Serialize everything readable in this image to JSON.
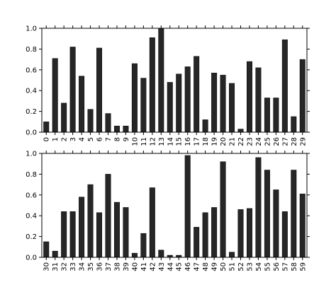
{
  "chart_data": [
    {
      "type": "bar",
      "title": "",
      "xlabel": "",
      "ylabel": "",
      "ylim": [
        0,
        1.0
      ],
      "y_ticks": [
        "0.0",
        "0.2",
        "0.4",
        "0.6",
        "0.8",
        "1.0"
      ],
      "grid": false,
      "bar_color": "#262626",
      "categories": [
        "0",
        "1",
        "2",
        "3",
        "4",
        "5",
        "6",
        "7",
        "8",
        "9",
        "10",
        "11",
        "12",
        "13",
        "14",
        "15",
        "16",
        "17",
        "18",
        "19",
        "20",
        "21",
        "22",
        "23",
        "24",
        "25",
        "26",
        "27",
        "28",
        "29"
      ],
      "values": [
        0.1,
        0.71,
        0.28,
        0.82,
        0.54,
        0.22,
        0.81,
        0.18,
        0.06,
        0.06,
        0.66,
        0.52,
        0.91,
        1.0,
        0.48,
        0.56,
        0.63,
        0.73,
        0.12,
        0.57,
        0.55,
        0.47,
        0.03,
        0.68,
        0.62,
        0.33,
        0.33,
        0.89,
        0.15,
        0.7
      ]
    },
    {
      "type": "bar",
      "title": "",
      "xlabel": "",
      "ylabel": "",
      "ylim": [
        0,
        1.0
      ],
      "y_ticks": [
        "0.0",
        "0.2",
        "0.4",
        "0.6",
        "0.8",
        "1.0"
      ],
      "grid": false,
      "bar_color": "#262626",
      "categories": [
        "30",
        "31",
        "32",
        "33",
        "34",
        "35",
        "36",
        "37",
        "38",
        "39",
        "40",
        "41",
        "42",
        "43",
        "44",
        "45",
        "46",
        "47",
        "48",
        "49",
        "50",
        "51",
        "52",
        "53",
        "54",
        "55",
        "56",
        "57",
        "58",
        "59"
      ],
      "values": [
        0.15,
        0.06,
        0.44,
        0.44,
        0.58,
        0.7,
        0.43,
        0.8,
        0.53,
        0.48,
        0.04,
        0.23,
        0.67,
        0.07,
        0.02,
        0.02,
        0.98,
        0.29,
        0.43,
        0.48,
        0.92,
        0.05,
        0.46,
        0.47,
        0.96,
        0.84,
        0.65,
        0.44,
        0.84,
        0.61
      ]
    }
  ]
}
